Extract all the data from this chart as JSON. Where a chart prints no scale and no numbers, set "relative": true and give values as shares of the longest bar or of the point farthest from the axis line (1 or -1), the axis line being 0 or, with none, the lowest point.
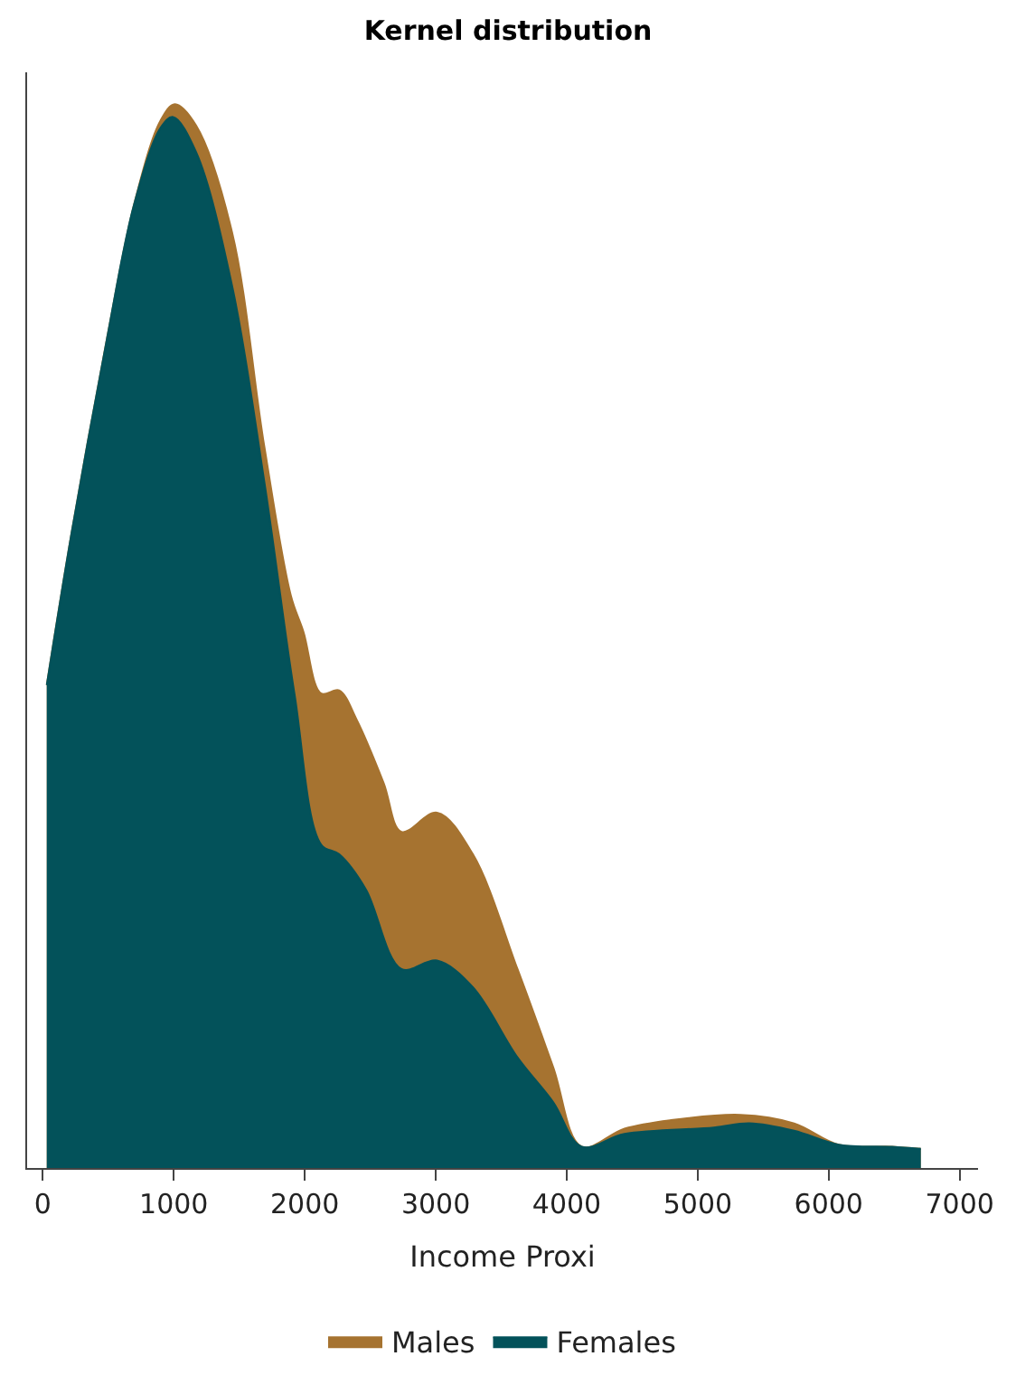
{
  "chart_data": {
    "type": "area",
    "title": "Kernel distribution",
    "xlabel": "Income Proxi",
    "relative": true,
    "xlim": [
      -120,
      7140
    ],
    "xticks": [
      0,
      1000,
      2000,
      3000,
      4000,
      5000,
      6000,
      7000
    ],
    "legend": "bottom",
    "series": [
      {
        "name": "Males",
        "color": "#a67330",
        "x": [
          30,
          218,
          490,
          695,
          900,
          1008,
          1170,
          1444,
          1690,
          1894,
          1990,
          2125,
          2262,
          2398,
          2602,
          2738,
          3010,
          3283,
          3624,
          3896,
          4114,
          4441,
          4796,
          5327,
          5736,
          6076,
          6485,
          6703
        ],
        "values": [
          0.454,
          0.596,
          0.78,
          0.905,
          0.985,
          1.0,
          0.98,
          0.88,
          0.679,
          0.538,
          0.504,
          0.446,
          0.449,
          0.421,
          0.362,
          0.316,
          0.334,
          0.295,
          0.187,
          0.095,
          0.02,
          0.037,
          0.045,
          0.05,
          0.042,
          0.022,
          0.02,
          0.018
        ]
      },
      {
        "name": "Females",
        "color": "#03525a",
        "x": [
          30,
          218,
          490,
          695,
          900,
          995,
          1170,
          1444,
          1690,
          1921,
          2125,
          2262,
          2466,
          2738,
          3010,
          3283,
          3624,
          3896,
          4114,
          4441,
          5123,
          5395,
          5736,
          6076,
          6485,
          6703
        ],
        "values": [
          0.454,
          0.596,
          0.78,
          0.905,
          0.978,
          0.988,
          0.955,
          0.83,
          0.646,
          0.446,
          0.304,
          0.295,
          0.262,
          0.187,
          0.195,
          0.17,
          0.104,
          0.062,
          0.02,
          0.032,
          0.038,
          0.042,
          0.035,
          0.022,
          0.02,
          0.018
        ]
      }
    ]
  }
}
